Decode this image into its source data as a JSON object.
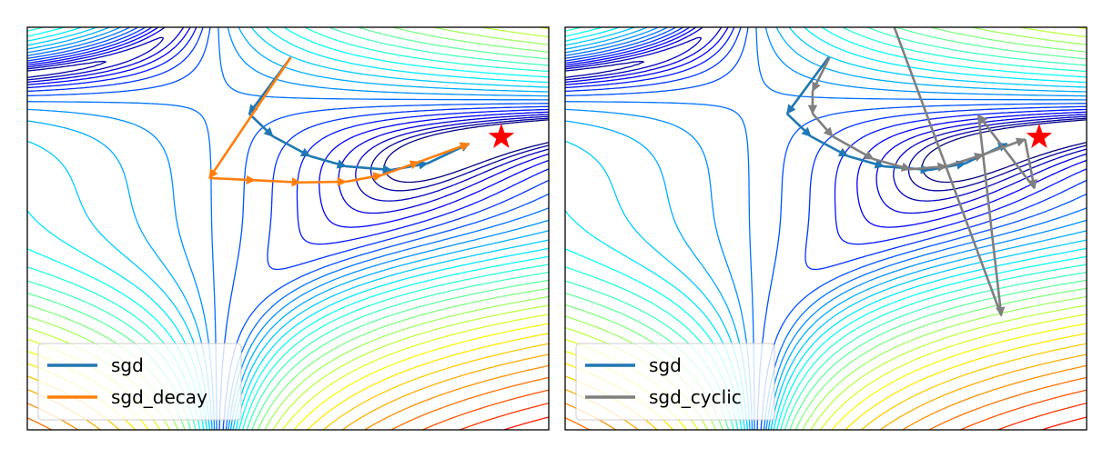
{
  "chart_data": [
    {
      "type": "contour",
      "xlim": [
        -2,
        3.5
      ],
      "ylim": [
        -3.5,
        2
      ],
      "colormap": "jet",
      "color_scale": "log",
      "levels_log10_range": [
        0,
        5
      ],
      "level_count": 35,
      "grid": false,
      "axes_ticks": false,
      "minimum_marker": {
        "x": 3,
        "y": 0.5,
        "marker": "star",
        "color": "#ff0000"
      },
      "legend_position": "lower-left",
      "series": [
        {
          "name": "sgd",
          "color": "#1f77b4",
          "points": [
            [
              0.78,
              1.59
            ],
            [
              0.34,
              0.82
            ],
            [
              0.59,
              0.51
            ],
            [
              0.98,
              0.24
            ],
            [
              1.36,
              0.1
            ],
            [
              1.84,
              0.05
            ],
            [
              2.22,
              0.14
            ],
            [
              2.66,
              0.41
            ]
          ]
        },
        {
          "name": "sgd_decay",
          "color": "#ff7f0e",
          "points": [
            [
              0.78,
              1.59
            ],
            [
              -0.08,
              -0.06
            ],
            [
              0.4,
              -0.09
            ],
            [
              0.88,
              -0.12
            ],
            [
              1.36,
              -0.11
            ],
            [
              1.74,
              -0.02
            ],
            [
              2.13,
              0.16
            ],
            [
              2.66,
              0.41
            ]
          ]
        }
      ]
    },
    {
      "type": "contour",
      "xlim": [
        -2,
        3.5
      ],
      "ylim": [
        -3.5,
        2
      ],
      "colormap": "jet",
      "color_scale": "log",
      "levels_log10_range": [
        0,
        5
      ],
      "level_count": 35,
      "grid": false,
      "axes_ticks": false,
      "minimum_marker": {
        "x": 3,
        "y": 0.5,
        "marker": "star",
        "color": "#ff0000"
      },
      "legend_position": "lower-left",
      "series": [
        {
          "name": "sgd",
          "color": "#1f77b4",
          "points": [
            [
              0.78,
              1.59
            ],
            [
              0.34,
              0.82
            ],
            [
              0.59,
              0.51
            ],
            [
              0.98,
              0.24
            ],
            [
              1.36,
              0.1
            ],
            [
              1.84,
              0.05
            ],
            [
              2.22,
              0.14
            ],
            [
              2.66,
              0.41
            ]
          ]
        },
        {
          "name": "sgd_cyclic",
          "color": "#7f7f7f",
          "points": [
            [
              0.79,
              1.59
            ],
            [
              0.61,
              1.13
            ],
            [
              0.61,
              0.82
            ],
            [
              0.82,
              0.51
            ],
            [
              1.25,
              0.2
            ],
            [
              1.64,
              0.06
            ],
            [
              2.02,
              0.1
            ],
            [
              2.41,
              0.26
            ],
            [
              2.85,
              0.47
            ],
            [
              2.95,
              -0.2
            ],
            [
              2.36,
              0.8
            ],
            [
              2.6,
              -1.94
            ],
            [
              1.3,
              2.6
            ]
          ]
        }
      ]
    }
  ]
}
